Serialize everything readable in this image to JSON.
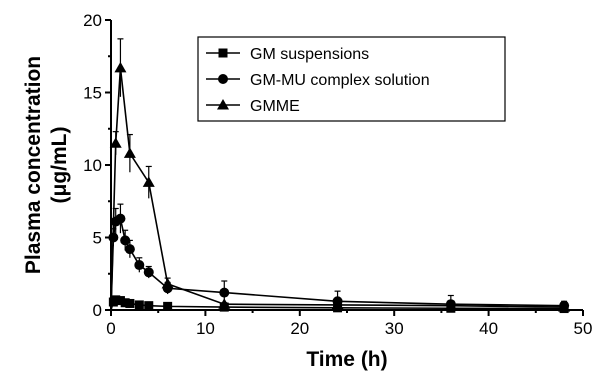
{
  "chart_data": {
    "type": "line",
    "xlabel": "Time (h)",
    "ylabel_line1": "Plasma concentration",
    "ylabel_line2": "(μg/mL)",
    "xlim": [
      0,
      50
    ],
    "ylim": [
      0,
      20
    ],
    "xticks": [
      0,
      10,
      20,
      30,
      40,
      50
    ],
    "yticks": [
      0,
      5,
      10,
      15,
      20
    ],
    "legend_position": "top-center",
    "grid": false,
    "series": [
      {
        "name": "GM suspensions",
        "marker": "square",
        "x": [
          0.25,
          0.5,
          1,
          1.5,
          2,
          3,
          4,
          6,
          12,
          24,
          36,
          48
        ],
        "y": [
          0.55,
          0.7,
          0.65,
          0.5,
          0.45,
          0.35,
          0.3,
          0.25,
          0.2,
          0.15,
          0.12,
          0.1
        ],
        "err": [
          0.1,
          0.15,
          0.15,
          0.1,
          0.1,
          0.08,
          0.06,
          0.05,
          0.05,
          0.04,
          0.03,
          0.03
        ]
      },
      {
        "name": "GM-MU complex solution",
        "marker": "circle",
        "x": [
          0.25,
          0.5,
          1,
          1.5,
          2,
          3,
          4,
          6,
          12,
          24,
          36,
          48
        ],
        "y": [
          5.0,
          6.1,
          6.3,
          4.8,
          4.2,
          3.1,
          2.6,
          1.5,
          1.2,
          0.6,
          0.4,
          0.3
        ],
        "err": [
          0.6,
          0.9,
          1.0,
          0.7,
          0.6,
          0.5,
          0.4,
          0.4,
          0.8,
          0.7,
          0.6,
          0.3
        ]
      },
      {
        "name": "GMME",
        "marker": "triangle",
        "x": [
          0.5,
          1,
          2,
          4,
          6,
          12,
          24,
          36,
          48
        ],
        "y": [
          11.5,
          16.7,
          10.8,
          8.8,
          1.8,
          0.4,
          0.35,
          0.3,
          0.2
        ],
        "err": [
          0.8,
          2.0,
          1.3,
          1.1,
          0.4,
          0.1,
          0.1,
          0.1,
          0.1
        ]
      }
    ]
  }
}
